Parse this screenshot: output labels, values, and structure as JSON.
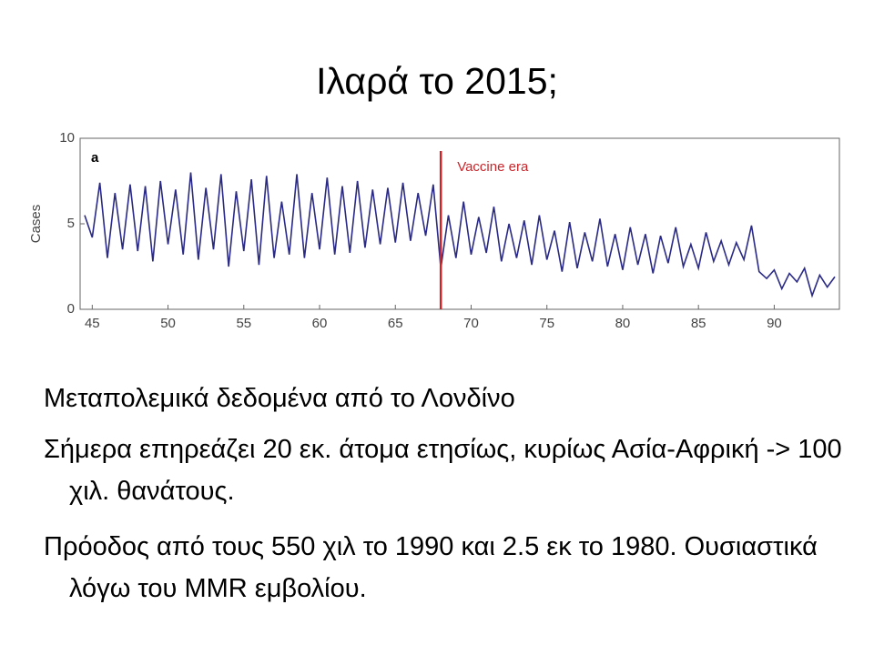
{
  "title": "Ιλαρά το 2015;",
  "chart_data": {
    "type": "line",
    "ylabel": "Cases",
    "panel_label": "a",
    "vline": {
      "x": 68,
      "label": "Vaccine era",
      "color": "#c8262b"
    },
    "xlim": [
      44.2,
      94.3
    ],
    "xticks": [
      45,
      50,
      55,
      60,
      65,
      70,
      75,
      80,
      85,
      90
    ],
    "ylim": [
      0,
      10
    ],
    "yticks": [
      0,
      5,
      10
    ],
    "x": [
      44.5,
      45,
      45.5,
      46,
      46.5,
      47,
      47.5,
      48,
      48.5,
      49,
      49.5,
      50,
      50.5,
      51,
      51.5,
      52,
      52.5,
      53,
      53.5,
      54,
      54.5,
      55,
      55.5,
      56,
      56.5,
      57,
      57.5,
      58,
      58.5,
      59,
      59.5,
      60,
      60.5,
      61,
      61.5,
      62,
      62.5,
      63,
      63.5,
      64,
      64.5,
      65,
      65.5,
      66,
      66.5,
      67,
      67.5,
      68,
      68.5,
      69,
      69.5,
      70,
      70.5,
      71,
      71.5,
      72,
      72.5,
      73,
      73.5,
      74,
      74.5,
      75,
      75.5,
      76,
      76.5,
      77,
      77.5,
      78,
      78.5,
      79,
      79.5,
      80,
      80.5,
      81,
      81.5,
      82,
      82.5,
      83,
      83.5,
      84,
      84.5,
      85,
      85.5,
      86,
      86.5,
      87,
      87.5,
      88,
      88.5,
      89,
      89.5,
      90,
      90.5,
      91,
      91.5,
      92,
      92.5,
      93,
      93.5,
      94
    ],
    "series": [
      {
        "color": "#2a2a86",
        "values": [
          5.5,
          4.2,
          7.4,
          3.0,
          6.8,
          3.5,
          7.3,
          3.4,
          7.2,
          2.8,
          7.5,
          3.8,
          7.0,
          3.2,
          8.0,
          2.9,
          7.1,
          3.5,
          7.9,
          2.5,
          6.9,
          3.4,
          7.6,
          2.6,
          7.8,
          3.0,
          6.3,
          3.2,
          7.9,
          3.0,
          6.8,
          3.5,
          7.7,
          3.2,
          7.2,
          3.3,
          7.5,
          3.6,
          7.0,
          3.8,
          7.1,
          3.9,
          7.4,
          4.0,
          6.8,
          4.3,
          7.3,
          2.4,
          5.5,
          3.0,
          6.3,
          3.2,
          5.4,
          3.3,
          6.0,
          2.8,
          5.0,
          3.0,
          5.2,
          2.6,
          5.5,
          2.9,
          4.6,
          2.2,
          5.1,
          2.4,
          4.5,
          2.8,
          5.3,
          2.5,
          4.4,
          2.3,
          4.8,
          2.6,
          4.4,
          2.1,
          4.3,
          2.7,
          4.8,
          2.5,
          3.8,
          2.4,
          4.5,
          2.8,
          4.0,
          2.6,
          3.9,
          2.9,
          4.9,
          2.2,
          1.8,
          2.3,
          1.2,
          2.1,
          1.6,
          2.4,
          0.8,
          2.0,
          1.3,
          1.9
        ]
      }
    ]
  },
  "bullets": [
    "Μεταπολεμικά δεδομένα από το Λονδίνο",
    "Σήμερα επηρεάζει 20 εκ. άτομα ετησίως, κυρίως Ασία-Αφρική -> 100 χιλ. θανάτους.",
    "Πρόοδος από τους 550 χιλ το 1990 και 2.5 εκ το 1980. Ουσιαστικά λόγω του MMR εμβολίου."
  ]
}
